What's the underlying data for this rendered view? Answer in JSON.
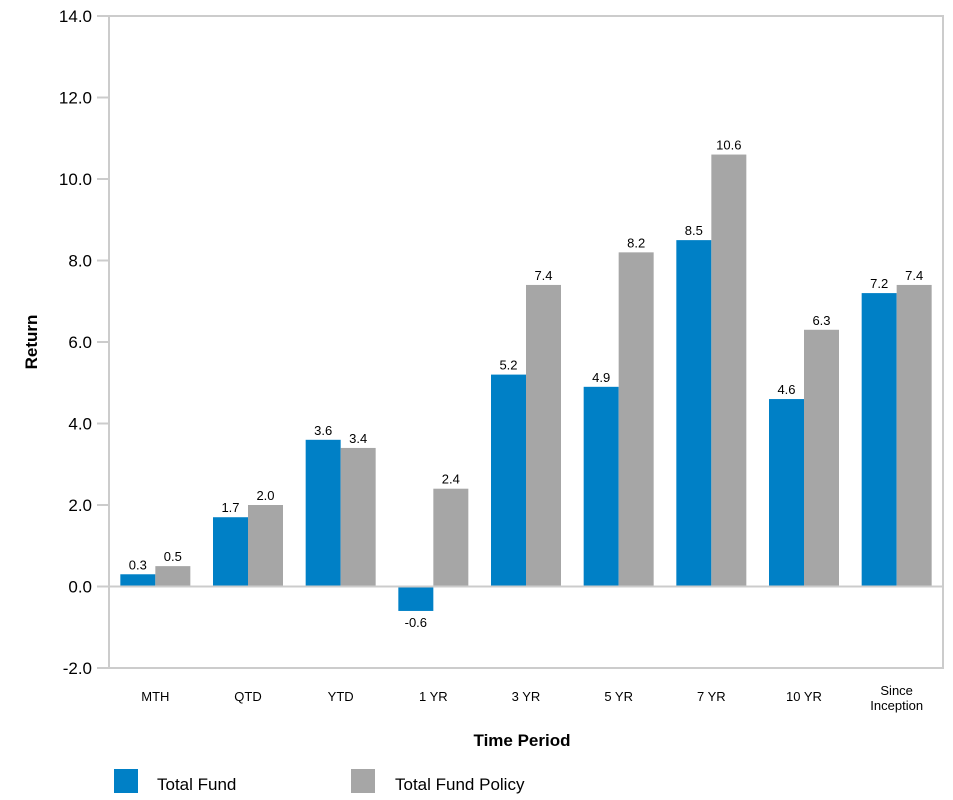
{
  "chart_data": {
    "type": "bar",
    "categories": [
      "MTH",
      "QTD",
      "YTD",
      "1 YR",
      "3 YR",
      "5 YR",
      "7 YR",
      "10 YR",
      "Since Inception"
    ],
    "series": [
      {
        "name": "Total Fund",
        "color": "#0080c6",
        "values": [
          0.3,
          1.7,
          3.6,
          -0.6,
          5.2,
          4.9,
          8.5,
          4.6,
          7.2
        ]
      },
      {
        "name": "Total Fund Policy",
        "color": "#a6a6a6",
        "values": [
          0.5,
          2.0,
          3.4,
          2.4,
          7.4,
          8.2,
          10.6,
          6.3,
          7.4
        ]
      }
    ],
    "value_labels": [
      [
        "0.3",
        "1.7",
        "3.6",
        "-0.6",
        "5.2",
        "4.9",
        "8.5",
        "4.6",
        "7.2"
      ],
      [
        "0.5",
        "2.0",
        "3.4",
        "2.4",
        "7.4",
        "8.2",
        "10.6",
        "6.3",
        "7.4"
      ]
    ],
    "xlabel": "Time Period",
    "ylabel": "Return",
    "ylim": [
      -2.0,
      14.0
    ],
    "yticks": [
      -2.0,
      0.0,
      2.0,
      4.0,
      6.0,
      8.0,
      10.0,
      12.0,
      14.0
    ],
    "ytick_labels": [
      "-2.0",
      "0.0",
      "2.0",
      "4.0",
      "6.0",
      "8.0",
      "10.0",
      "12.0",
      "14.0"
    ],
    "grid": false,
    "legend_position": "bottom-left"
  }
}
